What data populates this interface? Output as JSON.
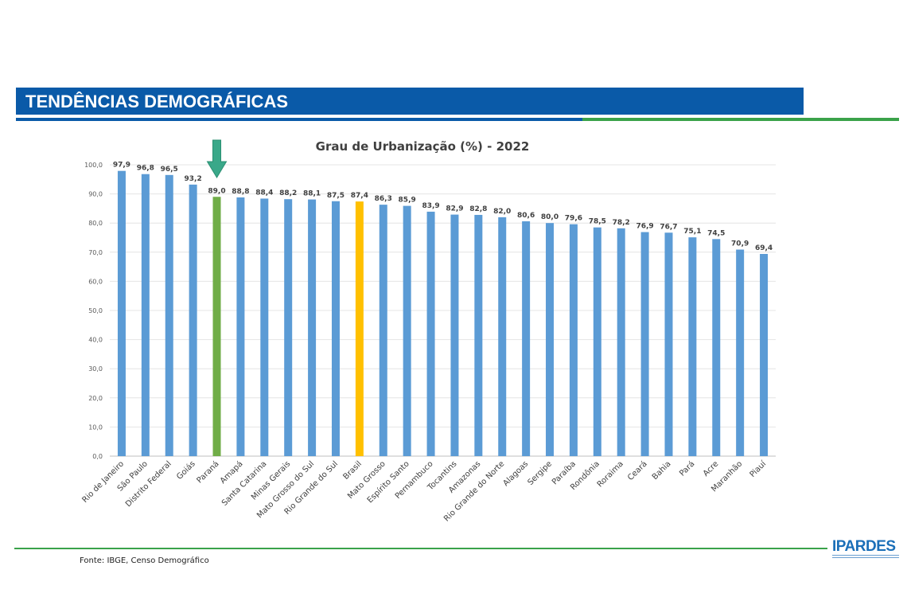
{
  "header": {
    "title": "TENDÊNCIAS DEMOGRÁFICAS"
  },
  "footer": {
    "source": "Fonte: IBGE, Censo Demográfico",
    "logo": "IPARDES"
  },
  "colors": {
    "bar": "#5b9bd5",
    "highlight_parana": "#70ad47",
    "highlight_brasil": "#ffc000",
    "arrow": "#3aa889",
    "header": "#0a5aa8",
    "accent_green": "#3aa24a"
  },
  "chart_data": {
    "type": "bar",
    "title": "Grau de Urbanização (%) - 2022",
    "xlabel": "",
    "ylabel": "",
    "ylim": [
      0,
      100
    ],
    "yticks": [
      "0,0",
      "10,0",
      "20,0",
      "30,0",
      "40,0",
      "50,0",
      "60,0",
      "70,0",
      "80,0",
      "90,0",
      "100,0"
    ],
    "grid": true,
    "categories": [
      "Rio de Janeiro",
      "São Paulo",
      "Distrito Federal",
      "Goiás",
      "Paraná",
      "Amapá",
      "Santa Catarina",
      "Minas Gerais",
      "Mato Grosso do Sul",
      "Rio Grande do Sul",
      "Brasil",
      "Mato Grosso",
      "Espírito Santo",
      "Pernambuco",
      "Tocantins",
      "Amazonas",
      "Rio Grande do Norte",
      "Alagoas",
      "Sergipe",
      "Paraíba",
      "Rondônia",
      "Roraima",
      "Ceará",
      "Bahia",
      "Pará",
      "Acre",
      "Maranhão",
      "Piauí"
    ],
    "values": [
      97.9,
      96.8,
      96.5,
      93.2,
      89.0,
      88.8,
      88.4,
      88.2,
      88.1,
      87.5,
      87.4,
      86.3,
      85.9,
      83.9,
      82.9,
      82.8,
      82.0,
      80.6,
      80.0,
      79.6,
      78.5,
      78.2,
      76.9,
      76.7,
      75.1,
      74.5,
      70.9,
      69.4
    ],
    "value_labels": [
      "97,9",
      "96,8",
      "96,5",
      "93,2",
      "89,0",
      "88,8",
      "88,4",
      "88,2",
      "88,1",
      "87,5",
      "87,4",
      "86,3",
      "85,9",
      "83,9",
      "82,9",
      "82,8",
      "82,0",
      "80,6",
      "80,0",
      "79,6",
      "78,5",
      "78,2",
      "76,9",
      "76,7",
      "75,1",
      "74,5",
      "70,9",
      "69,4"
    ],
    "highlights": {
      "Paraná": "#70ad47",
      "Brasil": "#ffc000"
    },
    "arrow_on": "Paraná"
  }
}
